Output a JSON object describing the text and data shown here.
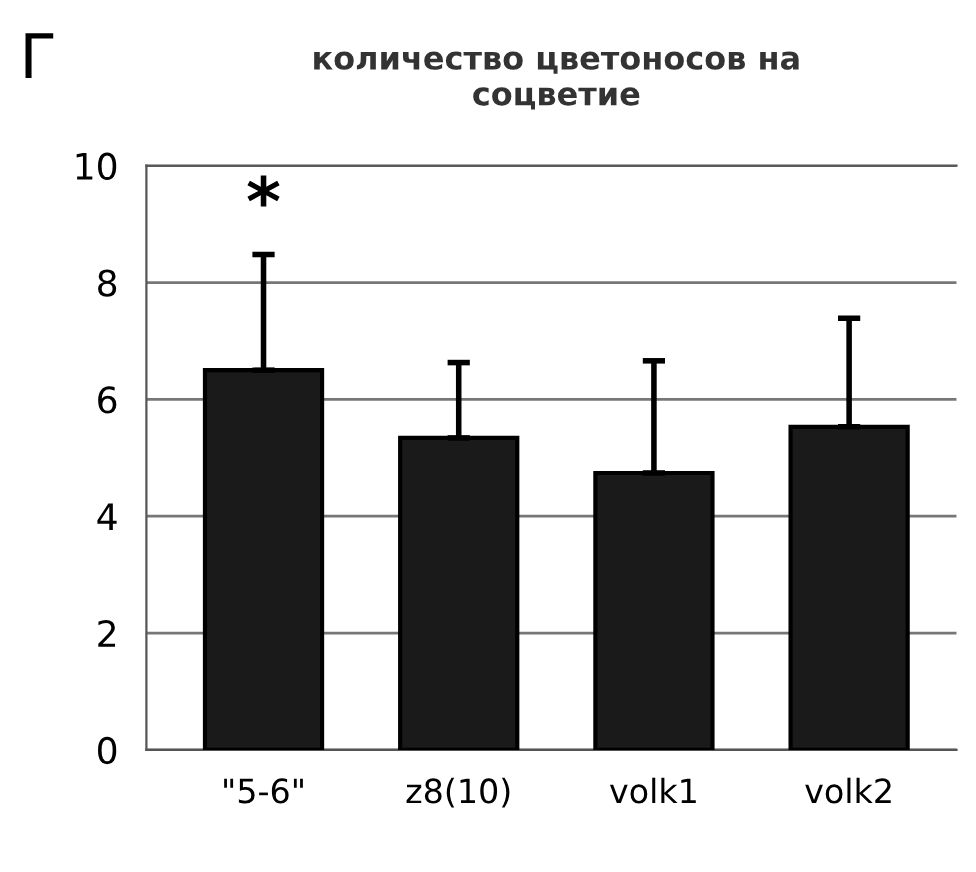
{
  "chart_data": {
    "type": "bar",
    "title": "количество цветоносов на\nсоцветие",
    "categories": [
      "\"5-6\"",
      "z8(10)",
      "volk1",
      "volk2"
    ],
    "values": [
      6.5,
      5.34,
      4.74,
      5.53
    ],
    "errors": [
      [
        6.5,
        8.48
      ],
      [
        5.34,
        6.63
      ],
      [
        4.74,
        6.66
      ],
      [
        5.53,
        7.39
      ]
    ],
    "color": "#1a1a1a",
    "ylim": [
      0,
      10
    ],
    "yticks": [
      0,
      2,
      4,
      6,
      8,
      10
    ],
    "grid": "y",
    "annotations": [
      "Г",
      "*"
    ]
  }
}
